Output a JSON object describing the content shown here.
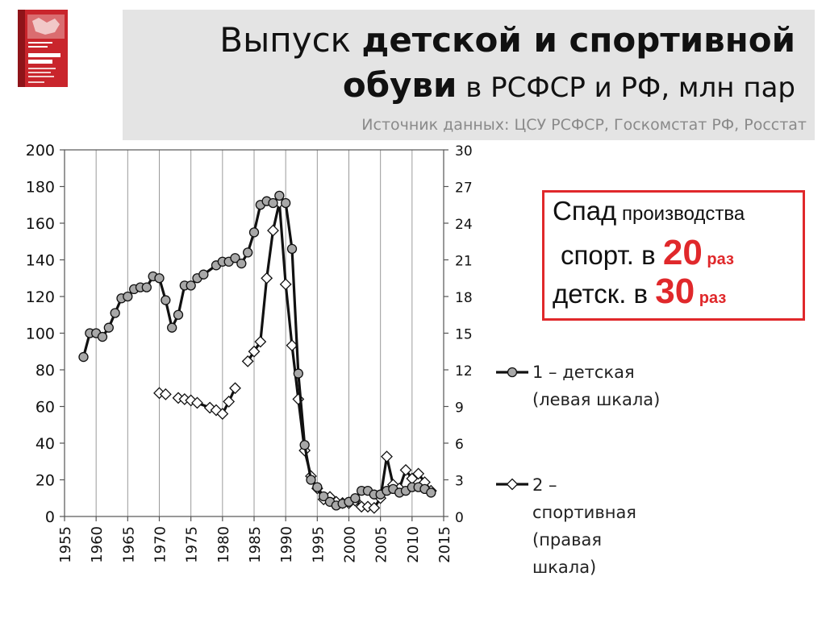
{
  "header": {
    "title_part1": "Выпуск ",
    "title_part2_bold": "детской и спортивной обуви",
    "title_part3": " в РСФСР и РФ, млн пар",
    "source": "Источник данных: ЦСУ РСФСР, Госкомстат РФ, Росстат"
  },
  "book_cover": {
    "authors": "В.Я. Гринберг\nД.Т. Колесников",
    "title": "БЕЛАЯ КНИГА\nРОССИИ",
    "subtitle": "Строительство,\nперестройка\nи реформы",
    "years": "1950–2013 гг.",
    "accent_color": "#c9252c"
  },
  "callout": {
    "line1_a": "Спад",
    "line1_b": " производства",
    "line2_a": "спорт. в ",
    "line2_num": "20",
    "line2_unit": " раз",
    "line3_a": "детск. в ",
    "line3_num": "30",
    "line3_unit": " раз",
    "accent_color": "#e0282b"
  },
  "legend": [
    {
      "text_lines": [
        "1 – детская",
        "(левая шкала)"
      ],
      "marker": "circle"
    },
    {
      "text_lines": [
        "2 –",
        "спортивная",
        "(правая",
        "шкала)"
      ],
      "marker": "diamond"
    }
  ],
  "chart_data": {
    "type": "line",
    "x_ticks": [
      1955,
      1960,
      1965,
      1970,
      1975,
      1980,
      1985,
      1990,
      1995,
      2000,
      2005,
      2010,
      2015
    ],
    "xlim": [
      1955,
      2015
    ],
    "ylim_left": [
      0,
      200
    ],
    "y_ticks_left": [
      0,
      20,
      40,
      60,
      80,
      100,
      120,
      140,
      160,
      180,
      200
    ],
    "ylim_right": [
      0,
      30
    ],
    "y_ticks_right": [
      0,
      3,
      6,
      9,
      12,
      15,
      18,
      21,
      24,
      27,
      30
    ],
    "grid": "vertical",
    "legend_position": "right",
    "series": [
      {
        "name": "1 – детская",
        "axis": "left",
        "marker": "circle",
        "color": "#111111",
        "segments": [
          [
            [
              1958,
              87
            ],
            [
              1959,
              100
            ],
            [
              1960,
              100
            ],
            [
              1961,
              98
            ],
            [
              1962,
              103
            ],
            [
              1963,
              111
            ],
            [
              1964,
              119
            ],
            [
              1965,
              120
            ],
            [
              1966,
              124
            ],
            [
              1967,
              125
            ],
            [
              1968,
              125
            ],
            [
              1969,
              131
            ],
            [
              1970,
              130
            ],
            [
              1971,
              118
            ],
            [
              1972,
              103
            ],
            [
              1973,
              110
            ],
            [
              1974,
              126
            ],
            [
              1975,
              126
            ],
            [
              1976,
              130
            ],
            [
              1977,
              132
            ],
            [
              1979,
              137
            ],
            [
              1980,
              139
            ],
            [
              1981,
              139
            ],
            [
              1982,
              141
            ],
            [
              1983,
              138
            ],
            [
              1984,
              144
            ],
            [
              1985,
              155
            ],
            [
              1986,
              170
            ],
            [
              1987,
              172
            ],
            [
              1988,
              171
            ],
            [
              1989,
              175
            ],
            [
              1990,
              171
            ],
            [
              1991,
              146
            ],
            [
              1992,
              78
            ],
            [
              1993,
              39
            ],
            [
              1994,
              20
            ],
            [
              1995,
              16
            ],
            [
              1996,
              11
            ],
            [
              1997,
              8
            ],
            [
              1998,
              6
            ],
            [
              1999,
              7
            ],
            [
              2000,
              8
            ],
            [
              2001,
              10
            ],
            [
              2002,
              14
            ],
            [
              2003,
              14
            ],
            [
              2004,
              12
            ],
            [
              2005,
              12
            ],
            [
              2006,
              14
            ],
            [
              2007,
              15
            ],
            [
              2008,
              13
            ],
            [
              2009,
              14
            ],
            [
              2010,
              16
            ],
            [
              2011,
              16
            ],
            [
              2012,
              15
            ],
            [
              2013,
              13
            ]
          ]
        ]
      },
      {
        "name": "2 – спортивная",
        "axis": "right",
        "marker": "diamond",
        "color": "#111111",
        "segments": [
          [
            [
              1970,
              10.1
            ],
            [
              1971,
              10.0
            ]
          ],
          [
            [
              1973,
              9.7
            ],
            [
              1974,
              9.6
            ],
            [
              1975,
              9.5
            ],
            [
              1976,
              9.3
            ],
            [
              1978,
              8.9
            ],
            [
              1979,
              8.7
            ],
            [
              1980,
              8.4
            ],
            [
              1981,
              9.4
            ],
            [
              1982,
              10.5
            ]
          ],
          [
            [
              1984,
              12.7
            ],
            [
              1985,
              13.5
            ],
            [
              1986,
              14.3
            ],
            [
              1987,
              19.5
            ],
            [
              1988,
              23.4
            ],
            [
              1989,
              25.7
            ],
            [
              1990,
              19.0
            ],
            [
              1991,
              14.0
            ],
            [
              1992,
              9.6
            ],
            [
              1993,
              5.4
            ],
            [
              1994,
              3.3
            ],
            [
              1995,
              2.3
            ],
            [
              1996,
              1.4
            ],
            [
              1997,
              1.6
            ],
            [
              1998,
              1.2
            ],
            [
              1999,
              1.1
            ],
            [
              2000,
              1.1
            ],
            [
              2001,
              1.3
            ],
            [
              2002,
              0.8
            ],
            [
              2003,
              0.8
            ],
            [
              2004,
              0.7
            ],
            [
              2005,
              1.5
            ],
            [
              2006,
              4.9
            ],
            [
              2007,
              2.6
            ],
            [
              2008,
              2.3
            ],
            [
              2009,
              3.8
            ],
            [
              2010,
              3.1
            ],
            [
              2011,
              3.5
            ],
            [
              2012,
              2.8
            ],
            [
              2013,
              2.1
            ]
          ]
        ]
      }
    ]
  }
}
